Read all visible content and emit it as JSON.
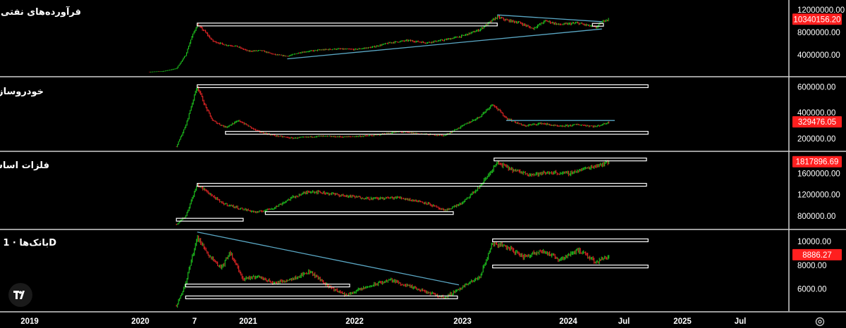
{
  "chart_data": [
    {
      "type": "candlestick",
      "title": "فرآورده‌های نفتی",
      "last_price": "10340156.20",
      "y_ticks": [
        "12000000.00",
        "8000000.00",
        "4000000.00"
      ],
      "ylim": [
        1000000,
        13000000
      ],
      "path": [
        [
          "2020-02-01",
          1000000
        ],
        [
          "2020-03-15",
          1100000
        ],
        [
          "2020-05-01",
          1600000
        ],
        [
          "2020-06-01",
          4000000
        ],
        [
          "2020-06-20",
          7000000
        ],
        [
          "2020-07-10",
          9400000
        ],
        [
          "2020-08-05",
          8200000
        ],
        [
          "2020-09-01",
          6500000
        ],
        [
          "2020-10-15",
          5800000
        ],
        [
          "2020-11-20",
          5600000
        ],
        [
          "2021-01-01",
          4700000
        ],
        [
          "2021-02-15",
          4800000
        ],
        [
          "2021-04-01",
          4100000
        ],
        [
          "2021-05-15",
          3800000
        ],
        [
          "2021-07-01",
          4500000
        ],
        [
          "2021-09-01",
          4900000
        ],
        [
          "2021-11-01",
          5100000
        ],
        [
          "2022-01-01",
          5000000
        ],
        [
          "2022-03-01",
          5400000
        ],
        [
          "2022-05-01",
          6200000
        ],
        [
          "2022-07-01",
          6600000
        ],
        [
          "2022-09-01",
          6200000
        ],
        [
          "2022-11-01",
          6700000
        ],
        [
          "2023-01-01",
          7400000
        ],
        [
          "2023-03-01",
          8500000
        ],
        [
          "2023-05-01",
          10800000
        ],
        [
          "2023-06-01",
          10200000
        ],
        [
          "2023-07-15",
          9800000
        ],
        [
          "2023-09-01",
          8700000
        ],
        [
          "2023-10-15",
          10100000
        ],
        [
          "2023-12-01",
          9400000
        ],
        [
          "2024-02-01",
          9700000
        ],
        [
          "2024-04-01",
          8900000
        ],
        [
          "2024-05-01",
          10300000
        ],
        [
          "2024-05-15",
          10340156
        ]
      ],
      "trendlines": [
        [
          [
            "2021-05-15",
            3300000
          ],
          [
            "2024-04-20",
            8600000
          ]
        ],
        [
          [
            "2023-05-01",
            11100000
          ],
          [
            "2024-04-20",
            9900000
          ]
        ]
      ],
      "zones": [
        [
          [
            "2020-07-10",
            9400000
          ],
          [
            "2023-05-01",
            9400000
          ]
        ],
        [
          [
            "2024-03-20",
            9350000
          ],
          [
            "2024-04-25",
            9350000
          ]
        ]
      ]
    },
    {
      "type": "candlestick",
      "title": "خودروسازی",
      "last_price": "329476.05",
      "y_ticks": [
        "600000.00",
        "400000.00",
        "200000.00"
      ],
      "ylim": [
        140000,
        640000
      ],
      "path": [
        [
          "2020-05-01",
          140000
        ],
        [
          "2020-06-01",
          300000
        ],
        [
          "2020-07-10",
          610000
        ],
        [
          "2020-08-05",
          460000
        ],
        [
          "2020-09-01",
          340000
        ],
        [
          "2020-10-15",
          290000
        ],
        [
          "2020-12-01",
          340000
        ],
        [
          "2021-02-01",
          260000
        ],
        [
          "2021-04-01",
          225000
        ],
        [
          "2021-06-01",
          205000
        ],
        [
          "2021-09-01",
          220000
        ],
        [
          "2021-12-01",
          215000
        ],
        [
          "2022-03-01",
          225000
        ],
        [
          "2022-06-01",
          255000
        ],
        [
          "2022-09-01",
          235000
        ],
        [
          "2022-11-01",
          225000
        ],
        [
          "2023-01-01",
          300000
        ],
        [
          "2023-03-01",
          370000
        ],
        [
          "2023-04-15",
          470000
        ],
        [
          "2023-06-01",
          360000
        ],
        [
          "2023-08-01",
          300000
        ],
        [
          "2023-10-01",
          320000
        ],
        [
          "2023-12-01",
          295000
        ],
        [
          "2024-02-01",
          310000
        ],
        [
          "2024-04-01",
          295000
        ],
        [
          "2024-05-15",
          329476
        ]
      ],
      "trendlines": [
        [
          [
            "2023-06-01",
            340000
          ],
          [
            "2024-06-01",
            340000
          ]
        ]
      ],
      "zones": [
        [
          [
            "2020-07-10",
            605000
          ],
          [
            "2024-09-15",
            605000
          ]
        ],
        [
          [
            "2020-10-15",
            245000
          ],
          [
            "2024-09-15",
            245000
          ]
        ]
      ]
    },
    {
      "type": "candlestick",
      "title": "فلزات اساسی",
      "last_price": "1817896.69",
      "y_ticks": [
        "1600000.00",
        "1200000.00",
        "800000.00"
      ],
      "ylim": [
        640000,
        1920000
      ],
      "path": [
        [
          "2020-05-01",
          650000
        ],
        [
          "2020-06-01",
          800000
        ],
        [
          "2020-07-10",
          1390000
        ],
        [
          "2020-08-15",
          1250000
        ],
        [
          "2020-10-01",
          1050000
        ],
        [
          "2020-12-01",
          950000
        ],
        [
          "2021-02-01",
          870000
        ],
        [
          "2021-04-01",
          960000
        ],
        [
          "2021-06-01",
          1150000
        ],
        [
          "2021-08-01",
          1270000
        ],
        [
          "2021-10-01",
          1230000
        ],
        [
          "2021-12-01",
          1180000
        ],
        [
          "2022-03-01",
          1130000
        ],
        [
          "2022-06-01",
          1150000
        ],
        [
          "2022-09-01",
          1050000
        ],
        [
          "2022-11-01",
          900000
        ],
        [
          "2023-01-01",
          1050000
        ],
        [
          "2023-03-01",
          1350000
        ],
        [
          "2023-05-01",
          1800000
        ],
        [
          "2023-07-01",
          1650000
        ],
        [
          "2023-09-01",
          1580000
        ],
        [
          "2023-11-01",
          1620000
        ],
        [
          "2024-01-01",
          1600000
        ],
        [
          "2024-03-01",
          1700000
        ],
        [
          "2024-05-15",
          1817896
        ]
      ],
      "trendlines": [],
      "zones": [
        [
          [
            "2020-05-01",
            730000
          ],
          [
            "2020-12-15",
            730000
          ]
        ],
        [
          [
            "2020-07-10",
            1385000
          ],
          [
            "2024-09-10",
            1385000
          ]
        ],
        [
          [
            "2021-03-01",
            855000
          ],
          [
            "2022-12-01",
            855000
          ]
        ],
        [
          [
            "2023-04-20",
            1860000
          ],
          [
            "2024-09-10",
            1860000
          ]
        ]
      ]
    },
    {
      "type": "candlestick",
      "title": "بانک‌ها · 1D",
      "last_price": "8886.27",
      "y_ticks": [
        "10000.00",
        "8000.00",
        "6000.00"
      ],
      "ylim": [
        4500,
        10600
      ],
      "path": [
        [
          "2020-05-01",
          4600000
        ],
        [
          "2020-06-01",
          6500000
        ],
        [
          "2020-07-10",
          10400000
        ],
        [
          "2020-08-15",
          9000000
        ],
        [
          "2020-10-01",
          7800000
        ],
        [
          "2020-11-01",
          9100000
        ],
        [
          "2020-12-15",
          6800000
        ],
        [
          "2021-02-01",
          7100000
        ],
        [
          "2021-04-01",
          6500000
        ],
        [
          "2021-06-01",
          6900000
        ],
        [
          "2021-08-01",
          7500000
        ],
        [
          "2021-10-01",
          6300000
        ],
        [
          "2021-12-01",
          5500000
        ],
        [
          "2022-02-01",
          6100000
        ],
        [
          "2022-05-01",
          6800000
        ],
        [
          "2022-08-01",
          6000000
        ],
        [
          "2022-11-01",
          5300000
        ],
        [
          "2023-01-01",
          6200000
        ],
        [
          "2023-03-01",
          7000000
        ],
        [
          "2023-04-15",
          9900000
        ],
        [
          "2023-06-01",
          9600000
        ],
        [
          "2023-08-01",
          8700000
        ],
        [
          "2023-10-01",
          9300000
        ],
        [
          "2023-12-01",
          8500000
        ],
        [
          "2024-02-01",
          9300000
        ],
        [
          "2024-04-01",
          8300000
        ],
        [
          "2024-05-15",
          8886270
        ]
      ],
      "trendlines": [
        [
          [
            "2020-07-10",
            10800
          ],
          [
            "2022-12-20",
            6350
          ]
        ]
      ],
      "zones": [
        [
          [
            "2020-06-01",
            6300
          ],
          [
            "2021-12-15",
            6300
          ]
        ],
        [
          [
            "2020-06-01",
            5300
          ],
          [
            "2022-12-15",
            5300
          ]
        ],
        [
          [
            "2023-04-15",
            10100
          ],
          [
            "2024-09-15",
            10100
          ]
        ],
        [
          [
            "2023-04-15",
            7900
          ],
          [
            "2024-09-15",
            7900
          ]
        ]
      ]
    }
  ],
  "x_axis": {
    "ticks": [
      {
        "label": "2019",
        "date": "2019-01-01"
      },
      {
        "label": "2020",
        "date": "2020-01-01"
      },
      {
        "label": "7",
        "date": "2020-07-01"
      },
      {
        "label": "2021",
        "date": "2021-01-01"
      },
      {
        "label": "2022",
        "date": "2022-01-01"
      },
      {
        "label": "2023",
        "date": "2023-01-01"
      },
      {
        "label": "2024",
        "date": "2024-01-01"
      },
      {
        "label": "Jul",
        "date": "2024-07-01"
      },
      {
        "label": "2025",
        "date": "2025-01-01"
      },
      {
        "label": "Jul",
        "date": "2025-07-01"
      }
    ]
  },
  "colors": {
    "up": "#22dd22",
    "down": "#ff2a2a",
    "trendline": "#5aa7c4",
    "zone": "#ffffff",
    "price_label": "#ff1f1f",
    "separator": "#cfcfcf",
    "background": "#000000"
  },
  "icons": {
    "logo": "tradingview-logo-icon",
    "settings": "gear-icon"
  }
}
